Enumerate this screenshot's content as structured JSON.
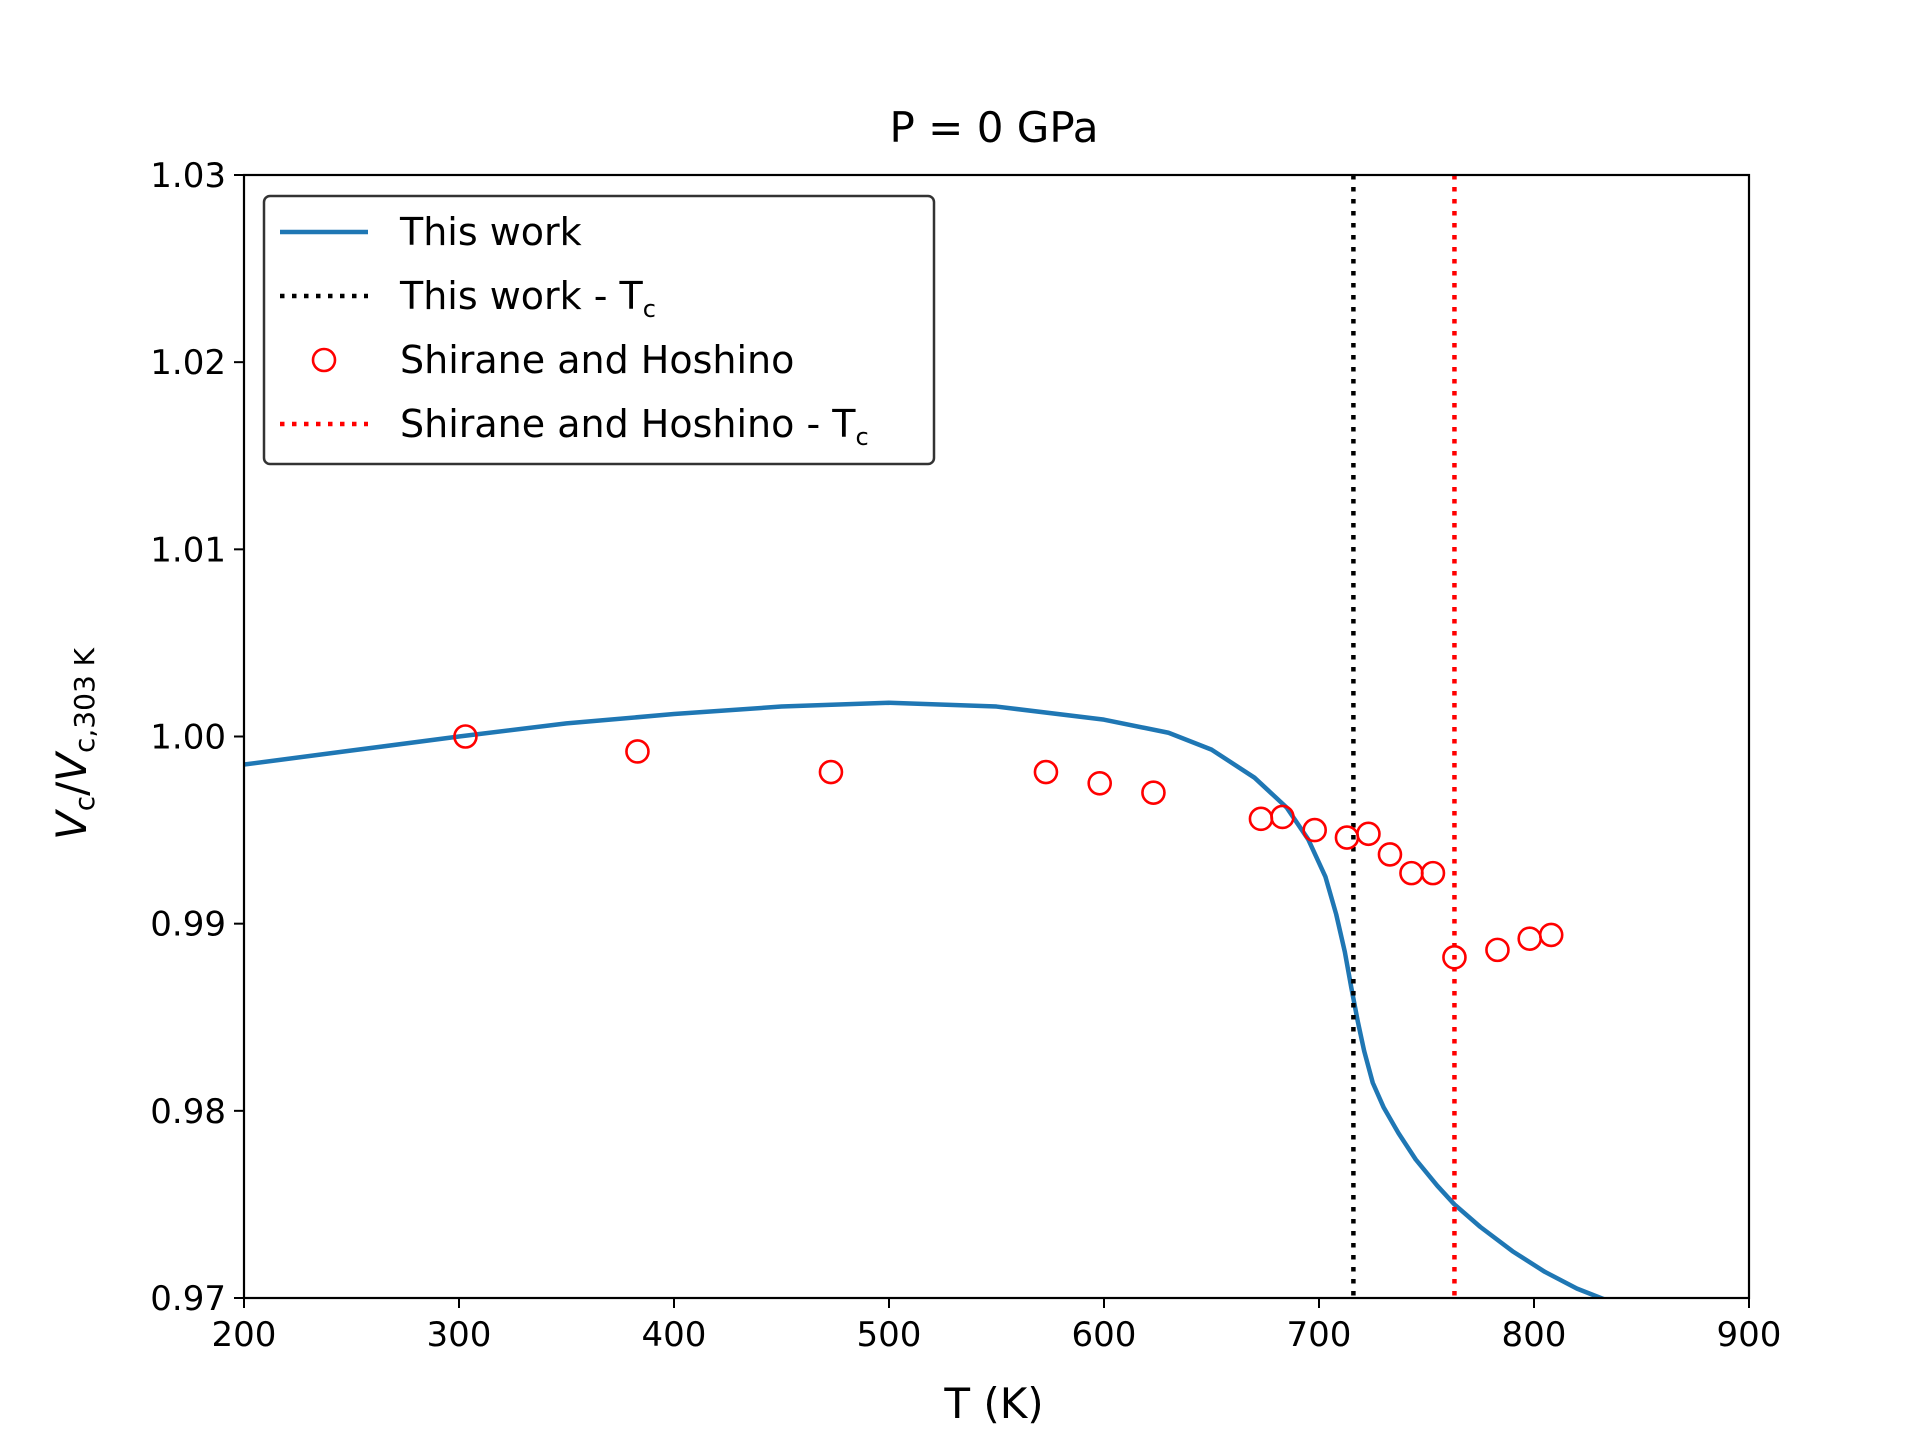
{
  "chart_data": {
    "type": "line",
    "title": "P = 0 GPa",
    "xlabel": "T (K)",
    "ylabel": {
      "main": "V",
      "main_sub": "c",
      "slash": "/",
      "denom": "V",
      "denom_sub": "c,303 K"
    },
    "xlim": [
      200,
      900
    ],
    "ylim": [
      0.97,
      1.03
    ],
    "xticks": [
      200,
      300,
      400,
      500,
      600,
      700,
      800,
      900
    ],
    "yticks": [
      0.97,
      0.98,
      0.99,
      1.0,
      1.01,
      1.02,
      1.03
    ],
    "ytick_labels": [
      "0.97",
      "0.98",
      "0.99",
      "1.00",
      "1.01",
      "1.02",
      "1.03"
    ],
    "grid": false,
    "legend_position": "top-left",
    "series": [
      {
        "name": "This work",
        "kind": "line",
        "color": "#1f77b4",
        "x": [
          200,
          250,
          300,
          350,
          400,
          450,
          500,
          550,
          600,
          630,
          650,
          670,
          685,
          695,
          703,
          708,
          712,
          715,
          718,
          721,
          725,
          730,
          737,
          745,
          755,
          763,
          775,
          790,
          805,
          820,
          840
        ],
        "y": [
          0.9985,
          0.99925,
          1.0,
          1.0007,
          1.0012,
          1.0016,
          1.0018,
          1.0016,
          1.0009,
          1.0002,
          0.9993,
          0.9978,
          0.9962,
          0.9945,
          0.9925,
          0.9905,
          0.9885,
          0.9866,
          0.9848,
          0.9832,
          0.9815,
          0.9802,
          0.9788,
          0.9774,
          0.976,
          0.975,
          0.9738,
          0.9725,
          0.9714,
          0.9705,
          0.9696
        ]
      },
      {
        "name": "This work - T",
        "name_sub": "c",
        "kind": "vline",
        "color": "#000000",
        "x": 716
      },
      {
        "name": "Shirane and Hoshino",
        "kind": "scatter",
        "color": "#ff0000",
        "x": [
          303,
          383,
          473,
          573,
          598,
          623,
          673,
          683,
          698,
          713,
          723,
          733,
          743,
          753,
          763,
          783,
          798,
          808
        ],
        "y": [
          1.0,
          0.9992,
          0.9981,
          0.9981,
          0.9975,
          0.997,
          0.9956,
          0.9957,
          0.995,
          0.9946,
          0.9948,
          0.9937,
          0.9927,
          0.9927,
          0.9882,
          0.9886,
          0.9892,
          0.9894
        ]
      },
      {
        "name": "Shirane and Hoshino - T",
        "name_sub": "c",
        "kind": "vline",
        "color": "#ff0000",
        "x": 763
      }
    ]
  }
}
